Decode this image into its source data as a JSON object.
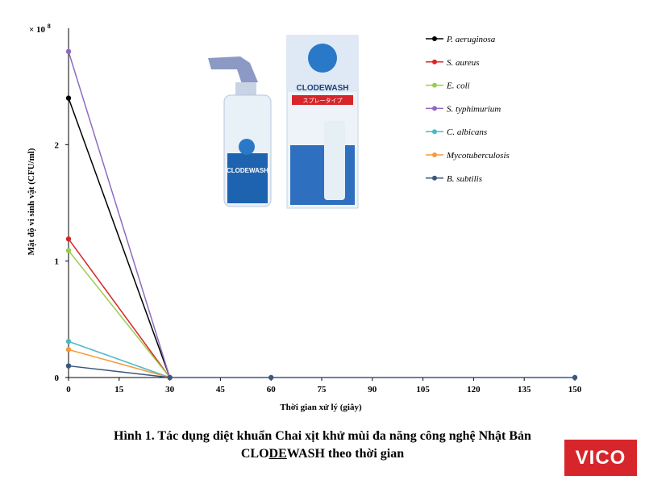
{
  "chart_data": {
    "type": "line",
    "title": "",
    "xlabel": "Thời gian xử lý (giây)",
    "ylabel": "Mật độ vi sinh vật (CFU/ml)",
    "y_multiplier_label": "× 10",
    "y_multiplier_exp": "8",
    "xlim": [
      0,
      150
    ],
    "ylim": [
      0,
      3
    ],
    "x_ticks": [
      0,
      15,
      30,
      45,
      60,
      75,
      90,
      105,
      120,
      135,
      150
    ],
    "y_ticks": [
      0,
      1,
      2
    ],
    "legend_position": "top-right",
    "series": [
      {
        "name": "P. aeruginosa",
        "color": "#000000",
        "x": [
          0,
          30
        ],
        "y": [
          2.4,
          0
        ]
      },
      {
        "name": "S. aureus",
        "color": "#d62728",
        "x": [
          0,
          30
        ],
        "y": [
          1.19,
          0
        ]
      },
      {
        "name": "E. coli",
        "color": "#9acd4f",
        "x": [
          0,
          30
        ],
        "y": [
          1.09,
          0
        ]
      },
      {
        "name": "S. typhimurium",
        "color": "#8e6bbf",
        "x": [
          0,
          30
        ],
        "y": [
          2.8,
          0
        ]
      },
      {
        "name": "C. albicans",
        "color": "#4bb8c8",
        "x": [
          0,
          30
        ],
        "y": [
          0.31,
          0
        ]
      },
      {
        "name": "Mycotuberculosis",
        "color": "#f59a3c",
        "x": [
          0,
          30
        ],
        "y": [
          0.24,
          0
        ]
      },
      {
        "name": "B. subtilis",
        "color": "#3b5680",
        "x": [
          0,
          30,
          60,
          150
        ],
        "y": [
          0.1,
          0,
          0,
          0
        ]
      }
    ]
  },
  "product_image": {
    "bottle_label": "CLODEWASH",
    "box_label": "CLODEWASH",
    "box_sublabel": "スプレータイプ"
  },
  "caption": {
    "line1": "Hình 1. Tác dụng diệt khuẩn Chai xịt khử mùi đa năng công nghệ Nhật Bản",
    "line2_pre": "CLO",
    "line2_underlined": "DE",
    "line2_post": "WASH theo thời gian"
  },
  "brand_badge": "VICO"
}
